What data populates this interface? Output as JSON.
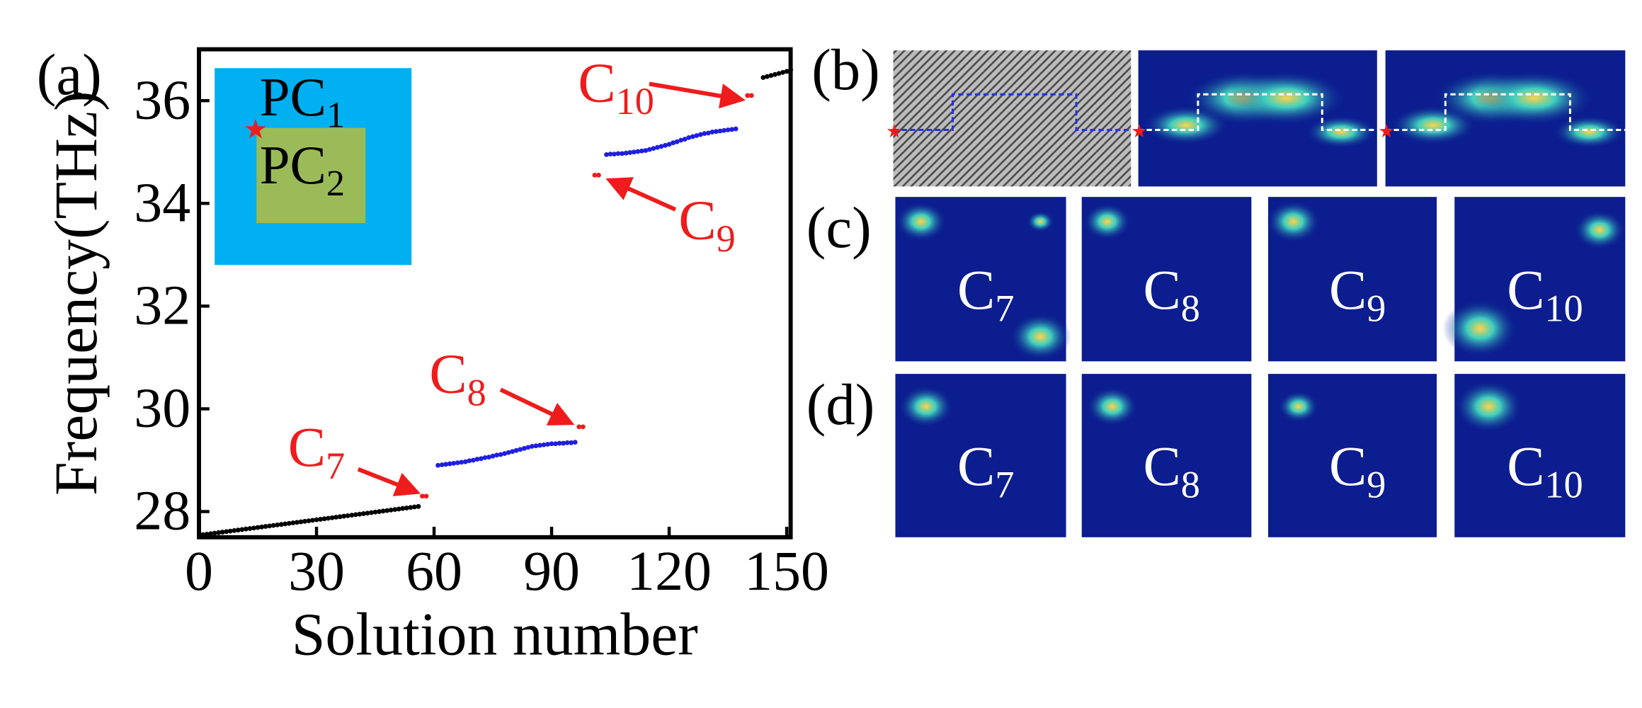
{
  "chart_data": {
    "type": "scatter",
    "xlabel": "Solution number",
    "ylabel": "Frequency(THz)",
    "xlim": [
      0,
      151
    ],
    "ylim": [
      27.5,
      37
    ],
    "xticks": [
      0,
      30,
      60,
      90,
      120,
      150
    ],
    "yticks": [
      28,
      30,
      32,
      34,
      36
    ],
    "panel_label": "(a)",
    "inset_labels": [
      {
        "base": "PC",
        "sub": "1"
      },
      {
        "base": "PC",
        "sub": "2"
      }
    ],
    "annotations": [
      {
        "base": "C",
        "sub": "7"
      },
      {
        "base": "C",
        "sub": "8"
      },
      {
        "base": "C",
        "sub": "9"
      },
      {
        "base": "C",
        "sub": "10"
      }
    ],
    "series": [
      {
        "color": "#000000",
        "x": [
          1,
          2,
          3,
          4,
          5,
          6,
          7,
          8,
          9,
          10,
          11,
          12,
          13,
          14,
          15,
          16,
          17,
          18,
          19,
          20,
          21,
          22,
          23,
          24,
          25,
          26,
          27,
          28,
          29,
          30,
          31,
          32,
          33,
          34,
          35,
          36,
          37,
          38,
          39,
          40,
          41,
          42,
          43,
          44,
          45,
          46,
          47,
          48,
          49,
          50,
          51,
          52,
          53,
          54,
          55,
          56
        ],
        "values": [
          27.55,
          27.56,
          27.57,
          27.58,
          27.59,
          27.6,
          27.61,
          27.62,
          27.63,
          27.64,
          27.65,
          27.66,
          27.67,
          27.68,
          27.69,
          27.7,
          27.71,
          27.72,
          27.73,
          27.74,
          27.75,
          27.76,
          27.77,
          27.78,
          27.79,
          27.8,
          27.81,
          27.82,
          27.83,
          27.84,
          27.85,
          27.86,
          27.87,
          27.88,
          27.89,
          27.9,
          27.91,
          27.92,
          27.93,
          27.94,
          27.95,
          27.96,
          27.97,
          27.98,
          27.99,
          28.0,
          28.01,
          28.02,
          28.03,
          28.04,
          28.05,
          28.06,
          28.07,
          28.08,
          28.09,
          28.1
        ]
      },
      {
        "color": "#ee1c1c",
        "x": [
          57,
          58
        ],
        "values": [
          28.3,
          28.3
        ]
      },
      {
        "color": "#1f1fe0",
        "x": [
          61,
          62,
          63,
          64,
          65,
          66,
          67,
          68,
          69,
          70,
          71,
          72,
          73,
          74,
          75,
          76,
          77,
          78,
          79,
          80,
          81,
          82,
          83,
          84,
          85,
          86,
          87,
          88,
          89,
          90,
          91,
          92,
          93,
          94,
          95,
          96
        ],
        "values": [
          28.9,
          28.91,
          28.92,
          28.93,
          28.94,
          28.95,
          28.96,
          28.97,
          28.99,
          29.0,
          29.02,
          29.03,
          29.05,
          29.06,
          29.08,
          29.1,
          29.11,
          29.13,
          29.15,
          29.17,
          29.19,
          29.21,
          29.23,
          29.25,
          29.27,
          29.28,
          29.29,
          29.3,
          29.31,
          29.32,
          29.32,
          29.33,
          29.33,
          29.34,
          29.34,
          29.35
        ]
      },
      {
        "color": "#ee1c1c",
        "x": [
          97,
          98
        ],
        "values": [
          29.65,
          29.65
        ]
      },
      {
        "color": "#ee1c1c",
        "x": [
          101,
          102
        ],
        "values": [
          34.55,
          34.55
        ]
      },
      {
        "color": "#1f1fe0",
        "x": [
          104,
          105,
          106,
          107,
          108,
          109,
          110,
          111,
          112,
          113,
          114,
          115,
          116,
          117,
          118,
          119,
          120,
          121,
          122,
          123,
          124,
          125,
          126,
          127,
          128,
          129,
          130,
          131,
          132,
          133,
          134,
          135,
          136,
          137
        ],
        "values": [
          34.95,
          34.96,
          34.96,
          34.97,
          34.97,
          34.98,
          34.99,
          35.0,
          35.01,
          35.02,
          35.03,
          35.05,
          35.07,
          35.09,
          35.11,
          35.13,
          35.15,
          35.18,
          35.2,
          35.23,
          35.25,
          35.28,
          35.3,
          35.32,
          35.34,
          35.36,
          35.37,
          35.39,
          35.4,
          35.41,
          35.42,
          35.43,
          35.44,
          35.45
        ]
      },
      {
        "color": "#ee1c1c",
        "x": [
          140,
          141
        ],
        "values": [
          36.1,
          36.1
        ]
      },
      {
        "color": "#000000",
        "x": [
          144,
          145,
          146,
          147,
          148,
          149,
          150,
          151
        ],
        "values": [
          36.45,
          36.47,
          36.49,
          36.51,
          36.53,
          36.55,
          36.57,
          36.6
        ]
      }
    ]
  },
  "panels": {
    "b": {
      "label": "(b)"
    },
    "c": {
      "label": "(c)",
      "images": [
        {
          "base": "C",
          "sub": "7"
        },
        {
          "base": "C",
          "sub": "8"
        },
        {
          "base": "C",
          "sub": "9"
        },
        {
          "base": "C",
          "sub": "10"
        }
      ]
    },
    "d": {
      "label": "(d)",
      "images": [
        {
          "base": "C",
          "sub": "7"
        },
        {
          "base": "C",
          "sub": "8"
        },
        {
          "base": "C",
          "sub": "9"
        },
        {
          "base": "C",
          "sub": "10"
        }
      ]
    }
  }
}
